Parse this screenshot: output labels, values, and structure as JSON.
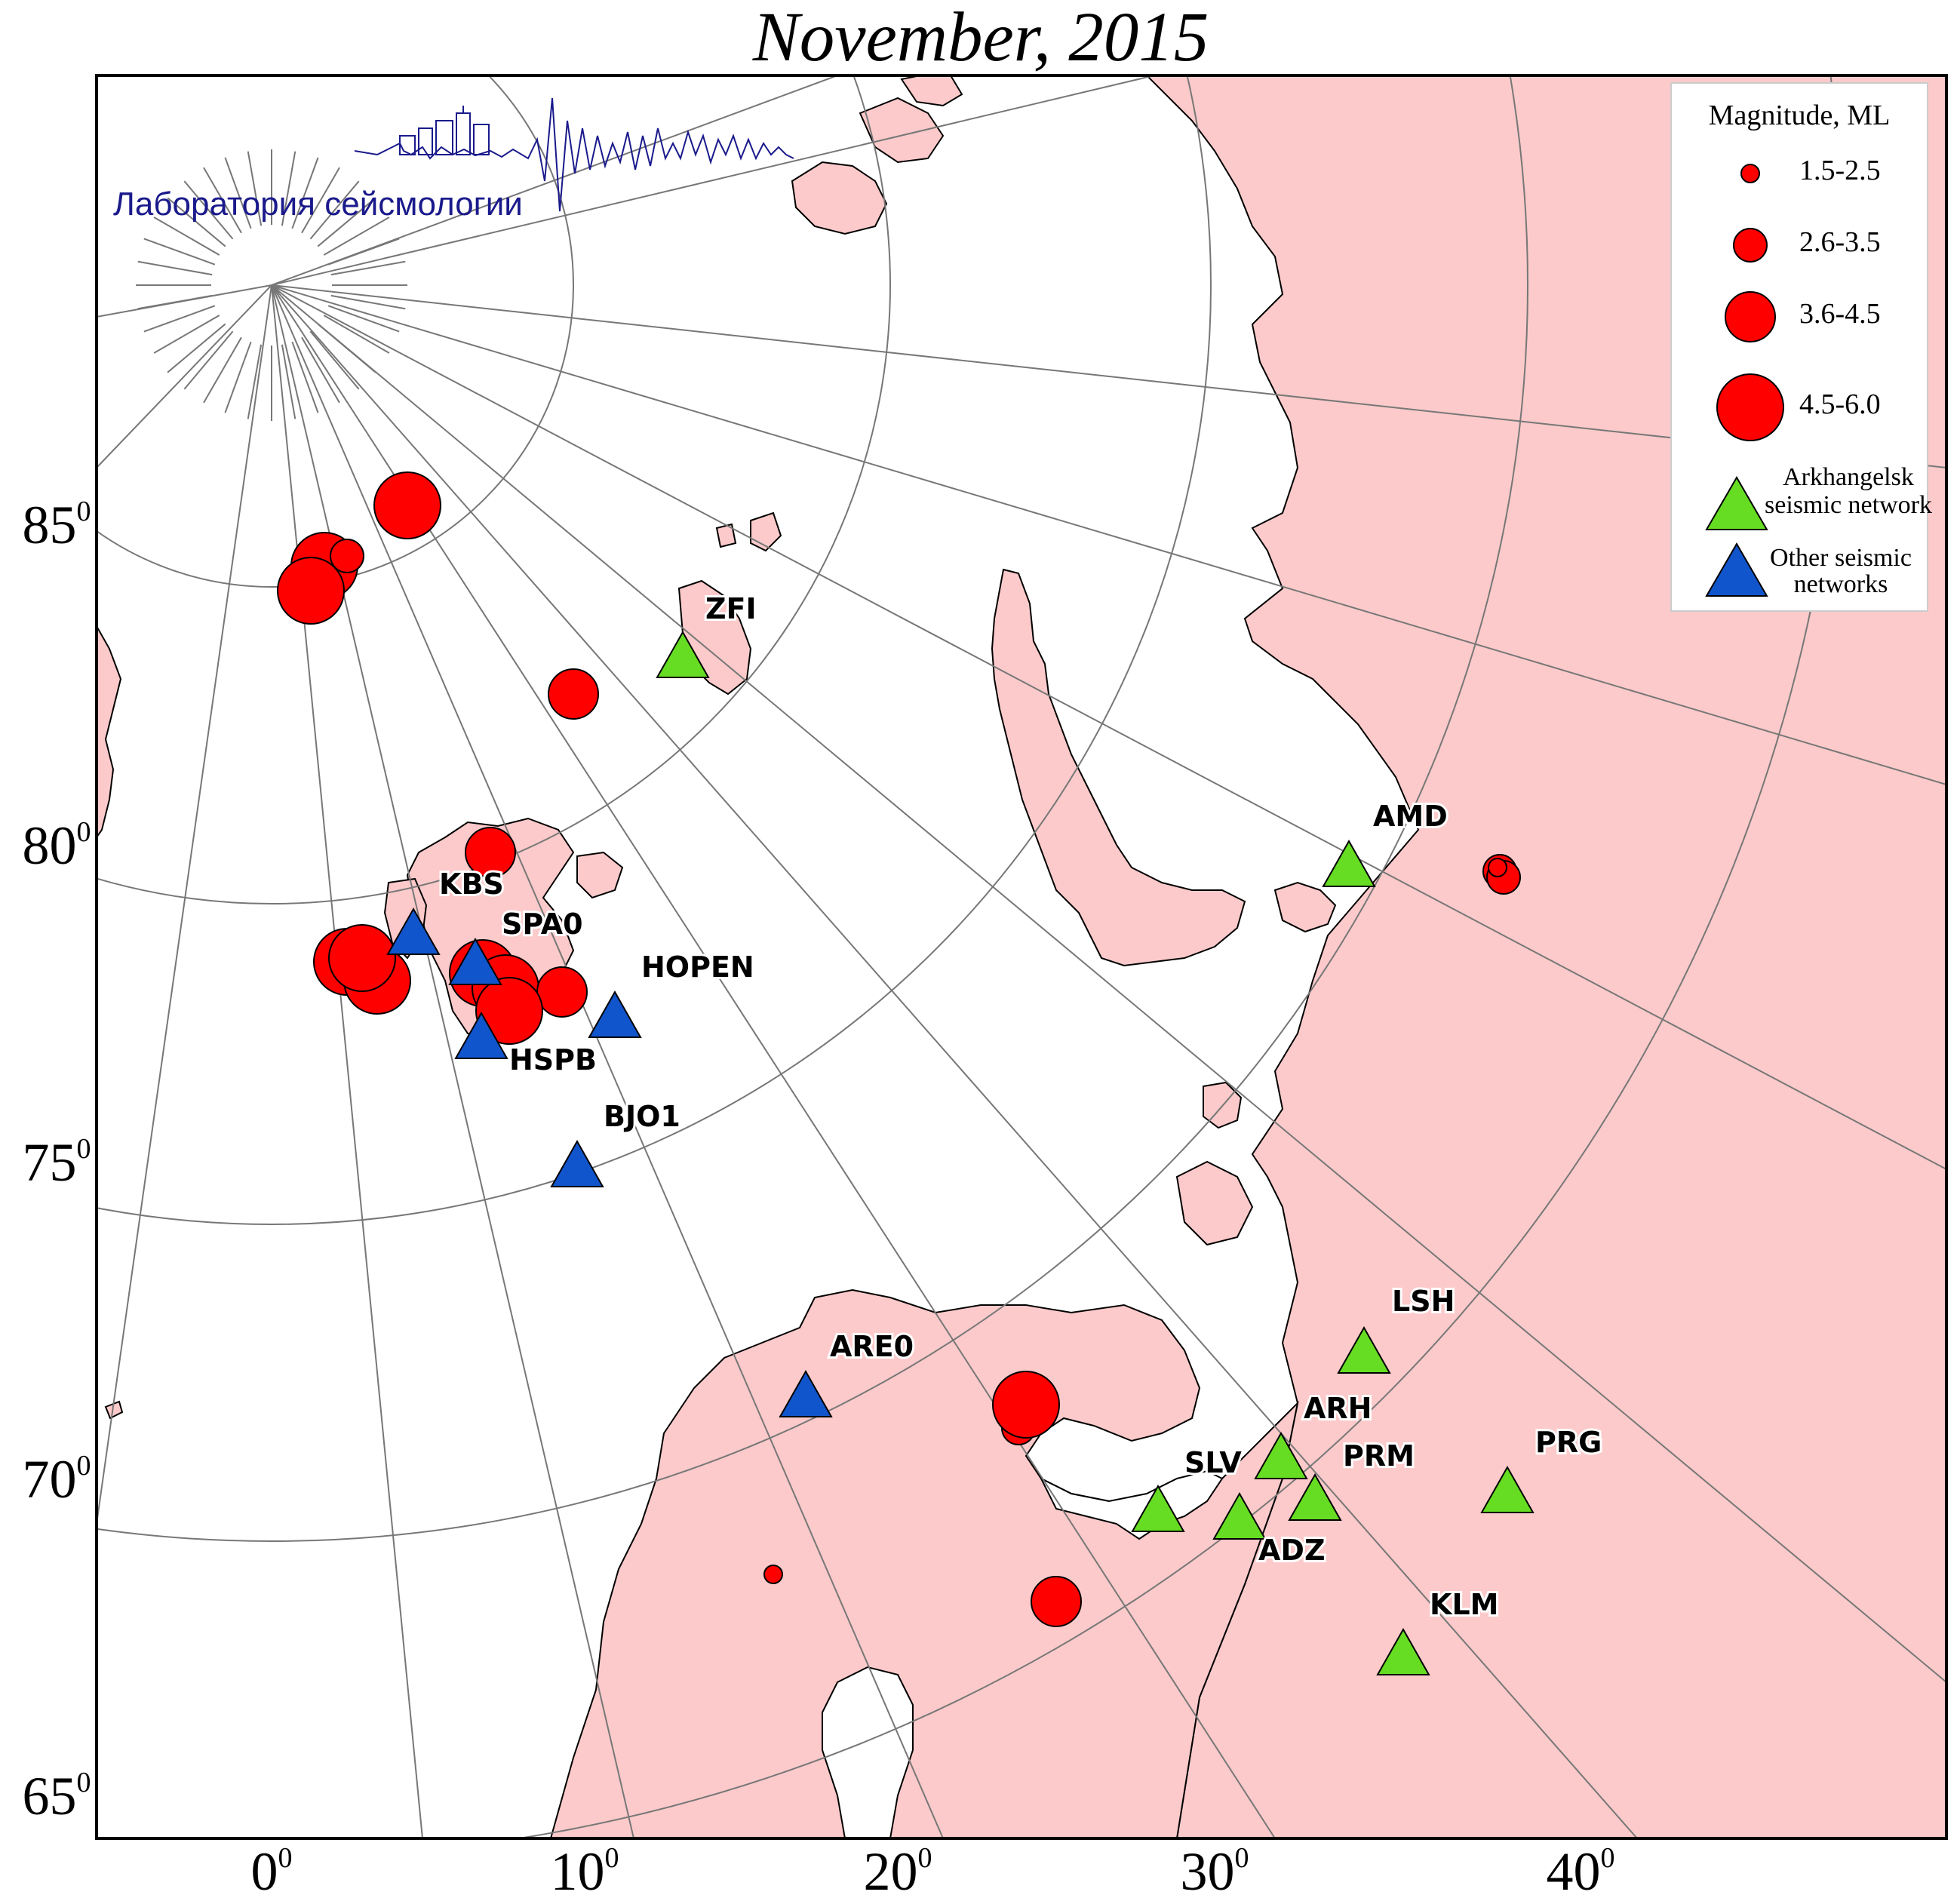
{
  "title": "November, 2015",
  "logo_caption": "Лаборатория сейсмологии",
  "colors": {
    "land": "#fccaca",
    "water": "#ffffff",
    "event": "#ff0000",
    "arkhangelsk_station": "#66dd22",
    "other_station": "#1155cc",
    "grid": "#777777",
    "logo": "#1a1a8c"
  },
  "map": {
    "projection": "polar-stereographic",
    "longitude_labels": [
      {
        "value": "0",
        "sup": "0"
      },
      {
        "value": "10",
        "sup": "0"
      },
      {
        "value": "20",
        "sup": "0"
      },
      {
        "value": "30",
        "sup": "0"
      },
      {
        "value": "40",
        "sup": "0"
      }
    ],
    "latitude_labels": [
      {
        "value": "85",
        "sup": "0"
      },
      {
        "value": "80",
        "sup": "0"
      },
      {
        "value": "75",
        "sup": "0"
      },
      {
        "value": "70",
        "sup": "0"
      },
      {
        "value": "65",
        "sup": "0"
      }
    ]
  },
  "legend": {
    "title": "Magnitude, ML",
    "magnitude_classes": [
      "1.5-2.5",
      "2.6-3.5",
      "3.6-4.5",
      "4.5-6.0"
    ],
    "arkhangelsk_label_line1": "Arkhangelsk",
    "arkhangelsk_label_line2": "seismic network",
    "other_label_line1": "Other seismic",
    "other_label_line2": "networks"
  },
  "stations": [
    {
      "code": "ZFI",
      "network": "arkhangelsk"
    },
    {
      "code": "AMD",
      "network": "arkhangelsk"
    },
    {
      "code": "LSH",
      "network": "arkhangelsk"
    },
    {
      "code": "ARH",
      "network": "arkhangelsk"
    },
    {
      "code": "SLV",
      "network": "arkhangelsk"
    },
    {
      "code": "PRM",
      "network": "arkhangelsk"
    },
    {
      "code": "ADZ",
      "network": "arkhangelsk"
    },
    {
      "code": "PRG",
      "network": "arkhangelsk"
    },
    {
      "code": "KLM",
      "network": "arkhangelsk"
    },
    {
      "code": "KBS",
      "network": "other"
    },
    {
      "code": "SPA0",
      "network": "other"
    },
    {
      "code": "HSPB",
      "network": "other"
    },
    {
      "code": "HOPEN",
      "network": "other"
    },
    {
      "code": "BJO1",
      "network": "other"
    },
    {
      "code": "ARE0",
      "network": "other"
    }
  ],
  "events": [
    {
      "magnitude_class": "4.5-6.0"
    },
    {
      "magnitude_class": "4.5-6.0"
    },
    {
      "magnitude_class": "4.5-6.0"
    },
    {
      "magnitude_class": "2.6-3.5"
    },
    {
      "magnitude_class": "3.6-4.5"
    },
    {
      "magnitude_class": "3.6-4.5"
    },
    {
      "magnitude_class": "4.5-6.0"
    },
    {
      "magnitude_class": "4.5-6.0"
    },
    {
      "magnitude_class": "4.5-6.0"
    },
    {
      "magnitude_class": "3.6-4.5"
    },
    {
      "magnitude_class": "4.5-6.0"
    },
    {
      "magnitude_class": "4.5-6.0"
    },
    {
      "magnitude_class": "3.6-4.5"
    },
    {
      "magnitude_class": "4.5-6.0"
    },
    {
      "magnitude_class": "2.6-3.5"
    },
    {
      "magnitude_class": "2.6-3.5"
    },
    {
      "magnitude_class": "1.5-2.5"
    },
    {
      "magnitude_class": "2.6-3.5"
    },
    {
      "magnitude_class": "3.6-4.5"
    },
    {
      "magnitude_class": "4.5-6.0"
    },
    {
      "magnitude_class": "1.5-2.5"
    },
    {
      "magnitude_class": "3.6-4.5"
    }
  ]
}
